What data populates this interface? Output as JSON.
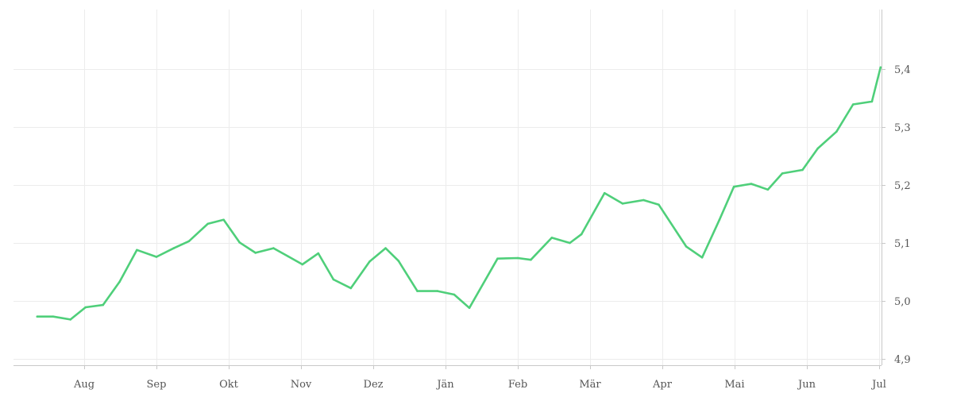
{
  "chart_data": {
    "type": "line",
    "title": "",
    "xlabel": "",
    "ylabel": "",
    "x_ticks": [
      "Aug",
      "Sep",
      "Okt",
      "Nov",
      "Dez",
      "Jän",
      "Feb",
      "Mär",
      "Apr",
      "Mai",
      "Jun",
      "Jul"
    ],
    "y_ticks": [
      "4,9",
      "5,0",
      "5,1",
      "5,2",
      "5,3",
      "5,4"
    ],
    "y_tick_values": [
      4.9,
      5.0,
      5.1,
      5.2,
      5.3,
      5.4
    ],
    "ylim": [
      4.88,
      5.49
    ],
    "xlim_months": [
      -0.65,
      11.02
    ],
    "grid": true,
    "y_axis_position": "right",
    "line_color": "#4fcf7a",
    "series": [
      {
        "x": [
          -0.65,
          -0.43,
          -0.19,
          0.02,
          0.26,
          0.49,
          0.73,
          1.0,
          1.24,
          1.45,
          1.71,
          1.93,
          2.15,
          2.37,
          2.62,
          2.82,
          3.02,
          3.24,
          3.45,
          3.69,
          3.95,
          4.17,
          4.35,
          4.61,
          4.89,
          5.12,
          5.33,
          5.72,
          6.0,
          6.18,
          6.47,
          6.72,
          6.88,
          7.2,
          7.45,
          7.74,
          7.95,
          8.33,
          8.55,
          8.79,
          8.99,
          9.23,
          9.46,
          9.66,
          9.94,
          10.15,
          10.41,
          10.64,
          10.9,
          11.02
        ],
        "y": [
          4.973,
          4.973,
          4.968,
          4.989,
          4.993,
          5.033,
          5.088,
          5.076,
          5.091,
          5.103,
          5.133,
          5.14,
          5.101,
          5.083,
          5.091,
          5.077,
          5.063,
          5.082,
          5.037,
          5.022,
          5.068,
          5.091,
          5.069,
          5.017,
          5.017,
          5.011,
          4.988,
          5.073,
          5.074,
          5.071,
          5.109,
          5.1,
          5.115,
          5.186,
          5.168,
          5.174,
          5.166,
          5.094,
          5.075,
          5.14,
          5.197,
          5.202,
          5.192,
          5.22,
          5.226,
          5.263,
          5.292,
          5.339,
          5.344,
          5.403
        ]
      }
    ]
  }
}
